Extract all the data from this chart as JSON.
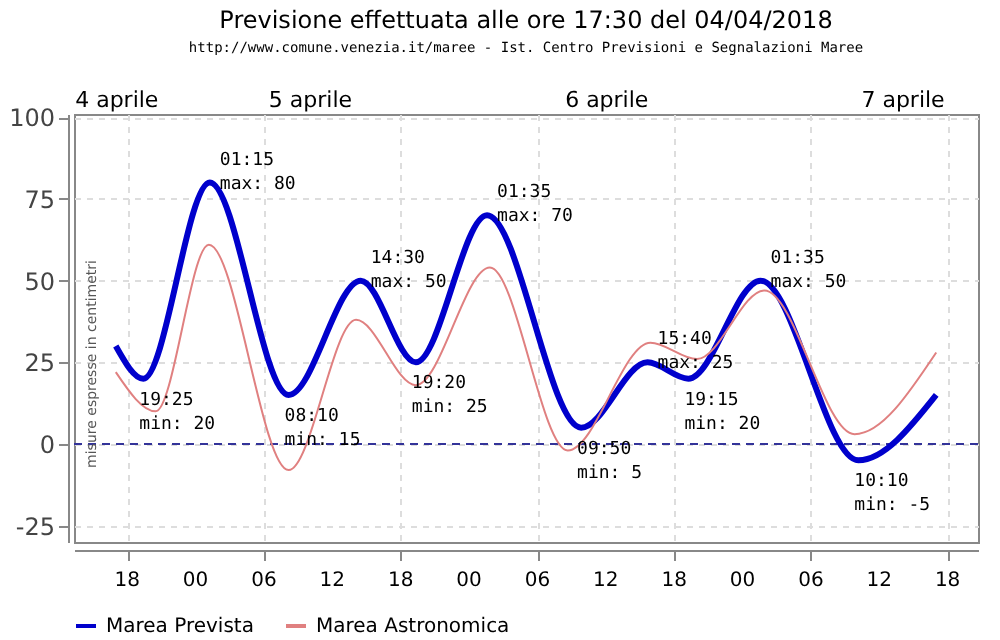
{
  "chart_data": {
    "type": "line",
    "title": "Previsione effettuata alle ore 17:30 del 04/04/2018",
    "subtitle": "http://www.comune.venezia.it/maree - Ist. Centro Previsioni e Segnalazioni Maree",
    "series": [
      {
        "name": "Marea Prevista",
        "color": "#0000cc",
        "x": [
          "2018-04-04T17:00",
          "2018-04-04T19:25",
          "2018-04-05T01:15",
          "2018-04-05T08:10",
          "2018-04-05T14:30",
          "2018-04-05T19:20",
          "2018-04-06T01:35",
          "2018-04-06T09:50",
          "2018-04-06T15:40",
          "2018-04-06T19:15",
          "2018-04-07T01:35",
          "2018-04-07T10:10",
          "2018-04-07T17:00"
        ],
        "values": [
          30,
          20,
          80,
          15,
          50,
          25,
          70,
          5,
          25,
          20,
          50,
          -5,
          15
        ]
      },
      {
        "name": "Marea Astronomica",
        "color": "#e08080",
        "x": [
          "2018-04-04T17:00",
          "2018-04-04T20:30",
          "2018-04-05T01:10",
          "2018-04-05T08:10",
          "2018-04-05T14:05",
          "2018-04-05T19:20",
          "2018-04-06T01:50",
          "2018-04-06T08:40",
          "2018-04-06T15:55",
          "2018-04-06T20:00",
          "2018-04-07T01:55",
          "2018-04-07T09:50",
          "2018-04-07T17:00"
        ],
        "values": [
          22,
          10,
          61,
          -8,
          38,
          18,
          54,
          -2,
          31,
          26,
          47,
          3,
          28
        ]
      }
    ],
    "xlim": [
      "2018-04-04T13:20",
      "2018-04-07T20:40"
    ],
    "xticks": [
      {
        "value": "2018-04-04T18:00",
        "label": "18"
      },
      {
        "value": "2018-04-05T00:00",
        "label": "00"
      },
      {
        "value": "2018-04-05T06:00",
        "label": "06"
      },
      {
        "value": "2018-04-05T12:00",
        "label": "12"
      },
      {
        "value": "2018-04-05T18:00",
        "label": "18"
      },
      {
        "value": "2018-04-06T00:00",
        "label": "00"
      },
      {
        "value": "2018-04-06T06:00",
        "label": "06"
      },
      {
        "value": "2018-04-06T12:00",
        "label": "12"
      },
      {
        "value": "2018-04-06T18:00",
        "label": "18"
      },
      {
        "value": "2018-04-07T00:00",
        "label": "00"
      },
      {
        "value": "2018-04-07T06:00",
        "label": "06"
      },
      {
        "value": "2018-04-07T12:00",
        "label": "12"
      },
      {
        "value": "2018-04-07T18:00",
        "label": "18"
      }
    ],
    "x2lim": [
      "2018-04-04T13:20",
      "2018-04-07T20:40"
    ],
    "x2ticks": [
      {
        "value": "2018-04-04T17:00",
        "label": "4 aprile"
      },
      {
        "value": "2018-04-05T10:00",
        "label": "5 aprile"
      },
      {
        "value": "2018-04-06T12:00",
        "label": "6 aprile"
      },
      {
        "value": "2018-04-07T14:00",
        "label": "7 aprile"
      }
    ],
    "ylim": [
      -30,
      101
    ],
    "yticks": [
      -25,
      0,
      25,
      50,
      75,
      100
    ],
    "grid": true,
    "legend": "bottom",
    "ref_lines": [
      {
        "axis": "y",
        "value": 0,
        "color": "#333399",
        "line_style": "dashed"
      }
    ],
    "annotations": [
      "misure espresse in centimetri",
      {
        "text": "19:25\nmin: 20",
        "x": "2018-04-04T19:25",
        "y": 20
      },
      {
        "text": "01:15\nmax: 80",
        "x": "2018-04-05T01:15",
        "y": 80
      },
      {
        "text": "08:10\nmin: 15",
        "x": "2018-04-05T08:10",
        "y": 15
      },
      {
        "text": "14:30\nmax: 50",
        "x": "2018-04-05T14:30",
        "y": 50
      },
      {
        "text": "19:20\nmin: 25",
        "x": "2018-04-05T19:20",
        "y": 25
      },
      {
        "text": "01:35\nmax: 70",
        "x": "2018-04-06T01:35",
        "y": 70
      },
      {
        "text": "09:50\nmin: 5",
        "x": "2018-04-06T09:50",
        "y": 5
      },
      {
        "text": "15:40\nmax: 25",
        "x": "2018-04-06T15:40",
        "y": 25
      },
      {
        "text": "19:15\nmin: 20",
        "x": "2018-04-06T19:15",
        "y": 20
      },
      {
        "text": "01:35\nmax: 50",
        "x": "2018-04-07T01:35",
        "y": 50
      },
      {
        "text": "10:10\nmin: -5",
        "x": "2018-04-07T10:10",
        "y": -5
      }
    ]
  }
}
